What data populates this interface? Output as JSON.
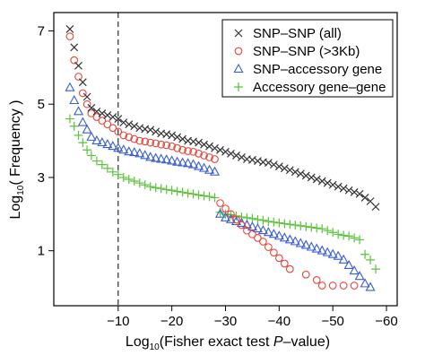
{
  "chart_data": {
    "type": "scatter",
    "xlabel_prefix": "Log",
    "xlabel_subscript": "10",
    "xlabel_main": "(Fisher exact test ",
    "xlabel_italic": "P",
    "xlabel_suffix": "–value)",
    "ylabel_prefix": "Log",
    "ylabel_subscript": "10",
    "ylabel_main": "( Frequency )",
    "xlim": [
      2,
      -62
    ],
    "ylim": [
      -0.5,
      7.5
    ],
    "x_ticks": [
      -10,
      -20,
      -30,
      -40,
      -50,
      -60
    ],
    "x_tick_labels": [
      "−10",
      "−20",
      "−30",
      "−40",
      "−50",
      "−60"
    ],
    "y_ticks": [
      1,
      3,
      5,
      7
    ],
    "y_tick_labels": [
      "1",
      "3",
      "5",
      "7"
    ],
    "reference_line": {
      "x": -10,
      "style": "dashed"
    },
    "legend_position": "top-right",
    "series": [
      {
        "name": "SNP–SNP (all)",
        "marker": "x",
        "color": "#333333",
        "x": [
          -1,
          -1.8,
          -2.6,
          -3.4,
          -4.2,
          -5,
          -6,
          -7,
          -8,
          -9,
          -10,
          -11,
          -12,
          -13,
          -14,
          -15,
          -16,
          -17,
          -18,
          -19,
          -20,
          -21,
          -22,
          -23,
          -24,
          -25,
          -26,
          -27,
          -28,
          -29,
          -30,
          -31,
          -32,
          -33,
          -34,
          -35,
          -36,
          -37,
          -38,
          -39,
          -40,
          -41,
          -42,
          -43,
          -44,
          -45,
          -46,
          -47,
          -48,
          -49,
          -50,
          -51,
          -52,
          -53,
          -54,
          -55,
          -56,
          -57,
          -58
        ],
        "y": [
          7.05,
          6.55,
          6.05,
          5.6,
          5.2,
          4.9,
          4.8,
          4.75,
          4.7,
          4.65,
          4.6,
          4.5,
          4.45,
          4.4,
          4.35,
          4.32,
          4.3,
          4.25,
          4.2,
          4.18,
          4.15,
          4.1,
          4.05,
          4.0,
          3.98,
          3.95,
          3.9,
          3.85,
          3.8,
          3.75,
          3.7,
          3.65,
          3.6,
          3.55,
          3.5,
          3.48,
          3.45,
          3.42,
          3.4,
          3.35,
          3.3,
          3.25,
          3.2,
          3.15,
          3.1,
          3.05,
          3.0,
          2.95,
          2.9,
          2.85,
          2.8,
          2.75,
          2.7,
          2.65,
          2.6,
          2.55,
          2.45,
          2.35,
          2.2
        ]
      },
      {
        "name": "SNP–SNP (>3Kb)",
        "marker": "circle",
        "color": "#e8443a",
        "x": [
          -1,
          -1.8,
          -2.6,
          -3.4,
          -4.2,
          -5,
          -6,
          -7,
          -8,
          -9,
          -10,
          -11,
          -12,
          -13,
          -14,
          -15,
          -16,
          -17,
          -18,
          -19,
          -20,
          -21,
          -22,
          -23,
          -24,
          -25,
          -26,
          -27,
          -28,
          -29,
          -30,
          -31,
          -32,
          -33,
          -34,
          -35,
          -36,
          -37,
          -38,
          -39,
          -40,
          -41,
          -42,
          -45,
          -47,
          -48,
          -50,
          -52,
          -54
        ],
        "y": [
          6.85,
          6.2,
          5.75,
          5.3,
          5.0,
          4.75,
          4.65,
          4.55,
          4.45,
          4.35,
          4.25,
          4.15,
          4.1,
          4.05,
          4.0,
          3.98,
          3.95,
          3.93,
          3.9,
          3.88,
          3.85,
          3.8,
          3.75,
          3.72,
          3.7,
          3.65,
          3.6,
          3.55,
          3.5,
          2.3,
          2.15,
          2.0,
          1.85,
          1.7,
          1.55,
          1.45,
          1.35,
          1.25,
          1.1,
          0.95,
          0.8,
          0.65,
          0.5,
          0.35,
          0.2,
          0.05,
          0.05,
          0.05,
          0.05
        ]
      },
      {
        "name": "SNP–accessory gene",
        "marker": "triangle",
        "color": "#3a5fcd",
        "x": [
          -1,
          -1.8,
          -2.6,
          -3.4,
          -4.2,
          -5,
          -6,
          -7,
          -8,
          -9,
          -10,
          -11,
          -12,
          -13,
          -14,
          -15,
          -16,
          -17,
          -18,
          -19,
          -20,
          -21,
          -22,
          -23,
          -24,
          -25,
          -26,
          -27,
          -28,
          -29,
          -30,
          -31,
          -32,
          -33,
          -34,
          -35,
          -36,
          -37,
          -38,
          -39,
          -40,
          -41,
          -42,
          -43,
          -44,
          -45,
          -46,
          -47,
          -48,
          -49,
          -50,
          -51,
          -52,
          -53,
          -54,
          -55,
          -56,
          -57
        ],
        "y": [
          5.45,
          5.1,
          4.8,
          4.5,
          4.3,
          4.1,
          4.0,
          3.95,
          3.9,
          3.85,
          3.8,
          3.75,
          3.7,
          3.68,
          3.65,
          3.6,
          3.55,
          3.52,
          3.5,
          3.48,
          3.45,
          3.42,
          3.4,
          3.38,
          3.35,
          3.3,
          3.25,
          3.2,
          3.15,
          2.0,
          1.9,
          1.85,
          1.8,
          1.75,
          1.7,
          1.65,
          1.6,
          1.55,
          1.5,
          1.45,
          1.4,
          1.35,
          1.3,
          1.25,
          1.2,
          1.15,
          1.1,
          1.05,
          1.0,
          0.95,
          0.9,
          0.85,
          0.75,
          0.6,
          0.45,
          0.3,
          0.1,
          0.0
        ]
      },
      {
        "name": "Accessory gene–gene",
        "marker": "plus",
        "color": "#5bc23a",
        "x": [
          -1,
          -1.8,
          -2.6,
          -3.4,
          -4.2,
          -5,
          -6,
          -7,
          -8,
          -9,
          -10,
          -11,
          -12,
          -13,
          -14,
          -15,
          -16,
          -17,
          -18,
          -19,
          -20,
          -21,
          -22,
          -23,
          -24,
          -25,
          -26,
          -27,
          -28,
          -29,
          -30,
          -31,
          -32,
          -33,
          -34,
          -35,
          -36,
          -37,
          -38,
          -39,
          -40,
          -41,
          -42,
          -43,
          -44,
          -45,
          -46,
          -47,
          -48,
          -49,
          -50,
          -51,
          -52,
          -53,
          -54,
          -55,
          -56,
          -57,
          -58
        ],
        "y": [
          4.6,
          4.4,
          4.15,
          3.95,
          3.75,
          3.6,
          3.45,
          3.35,
          3.25,
          3.15,
          3.08,
          3.0,
          2.95,
          2.9,
          2.85,
          2.8,
          2.75,
          2.72,
          2.7,
          2.67,
          2.65,
          2.62,
          2.6,
          2.57,
          2.55,
          2.52,
          2.5,
          2.48,
          2.45,
          2.05,
          2.0,
          1.98,
          1.95,
          1.92,
          1.9,
          1.88,
          1.85,
          1.83,
          1.8,
          1.78,
          1.76,
          1.74,
          1.72,
          1.7,
          1.68,
          1.66,
          1.64,
          1.62,
          1.6,
          1.55,
          1.5,
          1.45,
          1.42,
          1.4,
          1.35,
          1.3,
          0.9,
          0.75,
          0.5
        ]
      }
    ]
  }
}
